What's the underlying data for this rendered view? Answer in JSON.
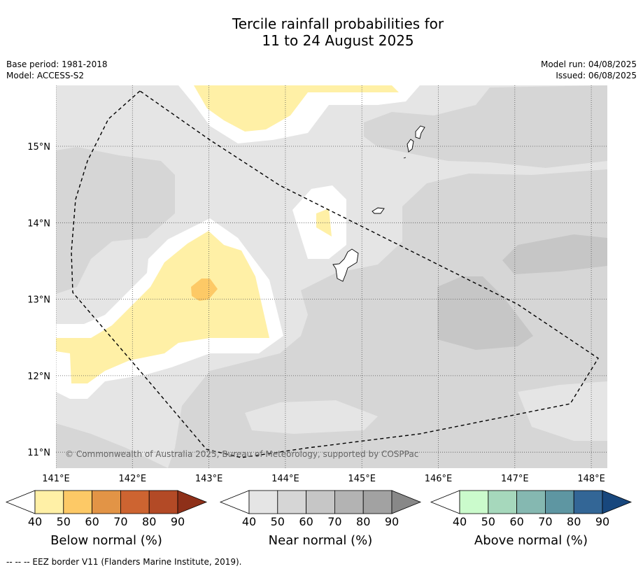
{
  "title_line1": "Tercile rainfall probabilities for",
  "title_line2": "11 to 24 August 2025",
  "base_period": "Base period: 1981-2018",
  "model": "Model: ACCESS-S2",
  "model_run": "Model run: 04/08/2025",
  "issued": "Issued: 06/08/2025",
  "copyright": "© Commonwealth of Australia 2025, Bureau of Meteorology, supported by COSPPac",
  "footnote": "--  --  -- EEZ border V11 (Flanders Marine Institute, 2019).",
  "map": {
    "lon_ticks": [
      "141°E",
      "142°E",
      "143°E",
      "144°E",
      "145°E",
      "146°E",
      "147°E",
      "148°E"
    ],
    "lat_ticks": [
      "15°N",
      "14°N",
      "13°N",
      "12°N",
      "11°N"
    ],
    "lon_range": [
      140.9,
      148.2
    ],
    "lat_range": [
      10.8,
      15.8
    ],
    "gridlines": true
  },
  "colorbars": [
    {
      "label": "Below normal (%)",
      "ticks": [
        "40",
        "50",
        "60",
        "70",
        "80",
        "90"
      ],
      "colors": [
        "#fff0a6",
        "#fdc966",
        "#e29446",
        "#cd6431",
        "#b34a26",
        "#8e3019"
      ]
    },
    {
      "label": "Near normal (%)",
      "ticks": [
        "40",
        "50",
        "60",
        "70",
        "80",
        "90"
      ],
      "colors": [
        "#e5e5e5",
        "#d6d6d6",
        "#c6c6c6",
        "#b3b3b3",
        "#a2a2a2",
        "#888888"
      ]
    },
    {
      "label": "Above normal (%)",
      "ticks": [
        "40",
        "50",
        "60",
        "70",
        "80",
        "90"
      ],
      "colors": [
        "#cbfbcc",
        "#a6d8bc",
        "#85b8b1",
        "#5e96a2",
        "#336696",
        "#18477d"
      ]
    }
  ]
}
